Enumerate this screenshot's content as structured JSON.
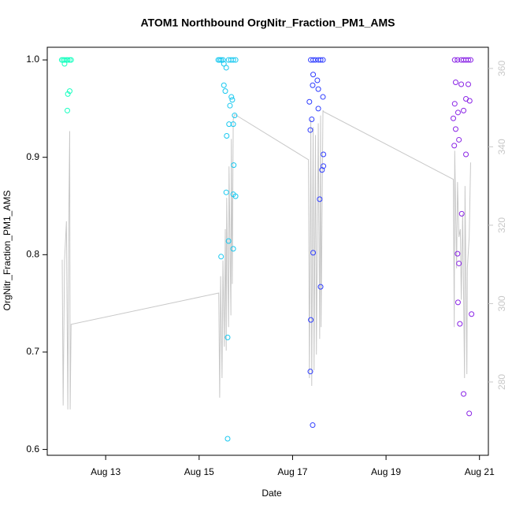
{
  "chart_data": {
    "type": "scatter",
    "title": "ATOM1 Northbound OrgNitr_Fraction_PM1_AMS",
    "x_label": "Date",
    "y_label": "OrgNitr_Fraction_PM1_AMS",
    "xlim": [
      11.75,
      21.19
    ],
    "xticks": [
      {
        "value": 13,
        "label": "Aug 13"
      },
      {
        "value": 15,
        "label": "Aug 15"
      },
      {
        "value": 17,
        "label": "Aug 17"
      },
      {
        "value": 19,
        "label": "Aug 19"
      },
      {
        "value": 21,
        "label": "Aug 21"
      }
    ],
    "ylim": [
      0.594,
      1.013
    ],
    "yticks": [
      0.6,
      0.7,
      0.8,
      0.9,
      {
        "value": 1.0,
        "label": "1.0"
      }
    ],
    "y2lim": [
      261.3,
      365.4
    ],
    "y2ticks": [
      280,
      300,
      320,
      340,
      360
    ],
    "series": [
      {
        "type": "line",
        "axis": "y2",
        "color": "#c8c8c8",
        "x": [
          12.07,
          12.09,
          12.12,
          12.16,
          12.19,
          12.21,
          12.23,
          12.24,
          12.26,
          15.42,
          15.44,
          15.46,
          15.49,
          15.51,
          15.54,
          15.56,
          15.58,
          15.59,
          15.63,
          15.64,
          15.68,
          15.69,
          15.71,
          15.73,
          15.76,
          17.34,
          17.36,
          17.39,
          17.41,
          17.44,
          17.46,
          17.49,
          17.51,
          17.55,
          17.58,
          17.6,
          17.61,
          17.65,
          17.66,
          20.44,
          20.46,
          20.47,
          20.51,
          20.53,
          20.56,
          20.59,
          20.61,
          20.64,
          20.68,
          20.69,
          20.73,
          20.74,
          20.78,
          20.81
        ],
        "values": [
          311.2,
          274,
          311,
          321,
          273,
          321,
          344,
          273,
          294.7,
          302.7,
          276,
          307,
          281,
          311,
          289,
          319,
          288,
          327,
          294,
          335,
          297,
          342,
          305,
          347,
          348.3,
          336.7,
          281,
          347,
          279,
          345,
          283,
          343,
          287,
          346,
          291,
          348,
          294,
          349.3,
          349,
          331.7,
          294,
          339,
          309,
          331,
          317,
          319,
          301,
          323,
          281,
          330,
          282,
          309,
          317,
          336
        ]
      },
      {
        "color": "#19ffc0",
        "x": [
          12.06,
          12.09,
          12.12,
          12.16,
          12.19,
          12.23,
          12.26,
          12.12,
          12.23,
          12.19,
          12.18
        ],
        "values": [
          1.0,
          1.0,
          1.0,
          1.0,
          1.0,
          1.0,
          1.0,
          0.996,
          0.968,
          0.965,
          0.948
        ]
      },
      {
        "color": "#17c8f0",
        "x": [
          15.41,
          15.44,
          15.47,
          15.51,
          15.63,
          15.68,
          15.73,
          15.78,
          15.53,
          15.58,
          15.53,
          15.56,
          15.69,
          15.71,
          15.66,
          15.76,
          15.64,
          15.73,
          15.59,
          15.74,
          15.58,
          15.73,
          15.78,
          15.63,
          15.73,
          15.47,
          15.61,
          15.61
        ],
        "values": [
          1.0,
          1.0,
          1.0,
          1.0,
          1.0,
          1.0,
          1.0,
          1.0,
          0.996,
          0.992,
          0.974,
          0.968,
          0.962,
          0.959,
          0.953,
          0.943,
          0.934,
          0.934,
          0.922,
          0.892,
          0.864,
          0.862,
          0.86,
          0.814,
          0.806,
          0.798,
          0.715,
          0.611
        ]
      },
      {
        "color": "#2f3dff",
        "x": [
          17.39,
          17.44,
          17.49,
          17.55,
          17.6,
          17.65,
          17.44,
          17.53,
          17.43,
          17.55,
          17.65,
          17.36,
          17.55,
          17.41,
          17.38,
          17.66,
          17.66,
          17.63,
          17.58,
          17.44,
          17.6,
          17.39,
          17.38,
          17.43
        ],
        "values": [
          1.0,
          1.0,
          1.0,
          1.0,
          1.0,
          1.0,
          0.985,
          0.979,
          0.974,
          0.97,
          0.962,
          0.957,
          0.95,
          0.939,
          0.928,
          0.903,
          0.891,
          0.887,
          0.857,
          0.802,
          0.767,
          0.733,
          0.68,
          0.625
        ]
      },
      {
        "color": "#8a24e6",
        "x": [
          20.47,
          20.53,
          20.61,
          20.66,
          20.71,
          20.76,
          20.81,
          20.49,
          20.61,
          20.76,
          20.71,
          20.79,
          20.47,
          20.66,
          20.54,
          20.44,
          20.49,
          20.56,
          20.46,
          20.71,
          20.62,
          20.53,
          20.56,
          20.54,
          20.83,
          20.58,
          20.66,
          20.78
        ],
        "values": [
          1.0,
          1.0,
          1.0,
          1.0,
          1.0,
          1.0,
          1.0,
          0.977,
          0.975,
          0.975,
          0.96,
          0.958,
          0.955,
          0.948,
          0.946,
          0.94,
          0.929,
          0.918,
          0.912,
          0.903,
          0.842,
          0.801,
          0.791,
          0.751,
          0.739,
          0.729,
          0.657,
          0.637
        ]
      }
    ]
  }
}
